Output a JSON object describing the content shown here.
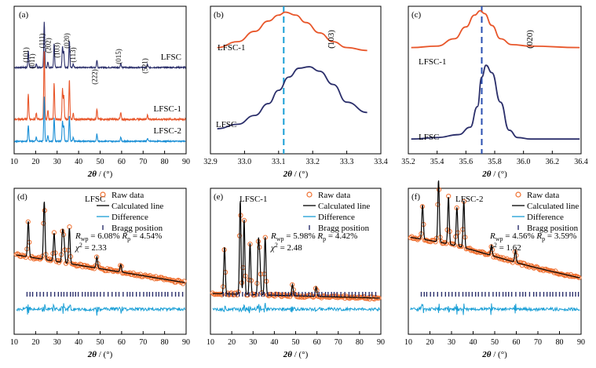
{
  "chart_data": [
    {
      "id": "a",
      "panel_label": "(a)",
      "type": "line",
      "xlabel": "2θ / (°)",
      "xlim": [
        10,
        90
      ],
      "xticks": [
        "10",
        "20",
        "30",
        "40",
        "50",
        "60",
        "70",
        "80",
        "90"
      ],
      "series": [
        {
          "name": "LFSC",
          "color": "#2b2f6b"
        },
        {
          "name": "LFSC-1",
          "color": "#e8562a"
        },
        {
          "name": "LFSC-2",
          "color": "#1a8fd6"
        }
      ],
      "peaks_x": [
        16.6,
        20.3,
        24.0,
        25.7,
        28.6,
        32.5,
        33.1,
        35.7,
        37.5,
        48.5,
        59.6,
        72.0
      ],
      "peaks_h": [
        0.35,
        0.08,
        0.95,
        0.12,
        0.5,
        0.42,
        0.32,
        0.55,
        0.08,
        0.15,
        0.09,
        0.06
      ],
      "annotations": [
        {
          "text": "(101)",
          "x": 16.6
        },
        {
          "text": "(011)",
          "x": 19.5
        },
        {
          "text": "(111)",
          "x": 24.0
        },
        {
          "text": "(̄202)",
          "x": 27.0
        },
        {
          "text": "(̄103)",
          "x": 31.0
        },
        {
          "text": "(020)",
          "x": 35.5
        },
        {
          "text": "(113)",
          "x": 38.5
        },
        {
          "text": "(222)",
          "x": 48.5
        },
        {
          "text": "(015)",
          "x": 59.6
        },
        {
          "text": "(521)",
          "x": 72.0
        }
      ]
    },
    {
      "id": "b",
      "panel_label": "(b)",
      "type": "line",
      "xlabel": "2θ / (°)",
      "xlim": [
        32.9,
        33.4
      ],
      "xticks": [
        "32.9",
        "33.0",
        "33.1",
        "33.2",
        "33.3",
        "33.4"
      ],
      "annotation": "(̄103)",
      "vline_x": 33.115,
      "series": [
        {
          "name": "LFSC-1",
          "color": "#e8562a",
          "x": [
            32.92,
            32.98,
            33.03,
            33.07,
            33.1,
            33.12,
            33.15,
            33.18,
            33.22,
            33.26,
            33.3,
            33.36
          ],
          "y": [
            0.72,
            0.76,
            0.83,
            0.9,
            0.94,
            0.96,
            0.94,
            0.89,
            0.82,
            0.76,
            0.72,
            0.7
          ]
        },
        {
          "name": "LFSC",
          "color": "#2b2f6b",
          "x": [
            32.92,
            32.98,
            33.03,
            33.07,
            33.1,
            33.13,
            33.16,
            33.19,
            33.22,
            33.26,
            33.3,
            33.36
          ],
          "y": [
            0.17,
            0.2,
            0.26,
            0.34,
            0.43,
            0.52,
            0.58,
            0.59,
            0.56,
            0.47,
            0.35,
            0.28
          ]
        }
      ]
    },
    {
      "id": "c",
      "panel_label": "(c)",
      "type": "line",
      "xlabel": "2θ / (°)",
      "xlim": [
        35.2,
        36.4
      ],
      "xticks": [
        "35.2",
        "35.4",
        "35.6",
        "35.8",
        "36.0",
        "36.2",
        "36.4"
      ],
      "annotation": "(020)",
      "vline_x": 35.71,
      "series": [
        {
          "name": "LFSC-1",
          "color": "#e8562a",
          "x": [
            35.22,
            35.4,
            35.52,
            35.6,
            35.66,
            35.7,
            35.73,
            35.78,
            35.84,
            35.92,
            36.05,
            36.39
          ],
          "y": [
            0.72,
            0.73,
            0.78,
            0.86,
            0.94,
            0.97,
            0.95,
            0.87,
            0.78,
            0.74,
            0.73,
            0.72
          ]
        },
        {
          "name": "LFSC",
          "color": "#2b2f6b",
          "x": [
            35.22,
            35.4,
            35.55,
            35.63,
            35.68,
            35.71,
            35.74,
            35.78,
            35.84,
            35.9,
            35.96,
            36.05,
            36.39
          ],
          "y": [
            0.1,
            0.11,
            0.13,
            0.18,
            0.32,
            0.52,
            0.6,
            0.55,
            0.35,
            0.16,
            0.11,
            0.1,
            0.1
          ]
        }
      ]
    },
    {
      "id": "d",
      "panel_label": "(d)",
      "type": "scatter",
      "title": "LFSC",
      "xlabel": "2θ / (°)",
      "xlim": [
        10,
        90
      ],
      "xticks": [
        "10",
        "20",
        "30",
        "40",
        "50",
        "60",
        "70",
        "80",
        "90"
      ],
      "legend": [
        "Raw data",
        "Calculated line",
        "Difference",
        "Bragg position"
      ],
      "stats": {
        "rwp": "6.08%",
        "rp": "4.54%",
        "chi2": "2.33"
      }
    },
    {
      "id": "e",
      "panel_label": "(e)",
      "type": "scatter",
      "title": "LFSC-1",
      "xlabel": "2θ / (°)",
      "xlim": [
        10,
        90
      ],
      "xticks": [
        "10",
        "20",
        "30",
        "40",
        "50",
        "60",
        "70",
        "80",
        "90"
      ],
      "legend": [
        "Raw data",
        "Calculated line",
        "Difference",
        "Bragg position"
      ],
      "stats": {
        "rwp": "5.98%",
        "rp": "4.42%",
        "chi2": "2.48"
      }
    },
    {
      "id": "f",
      "panel_label": "(f)",
      "type": "scatter",
      "title": "LFSC-2",
      "xlabel": "2θ / (°)",
      "xlim": [
        10,
        90
      ],
      "xticks": [
        "10",
        "20",
        "30",
        "40",
        "50",
        "60",
        "70",
        "80",
        "90"
      ],
      "legend": [
        "Raw data",
        "Calculated line",
        "Difference",
        "Bragg position"
      ],
      "stats": {
        "rwp": "4.56%",
        "rp": "3.59%",
        "chi2": "1.62"
      }
    }
  ]
}
